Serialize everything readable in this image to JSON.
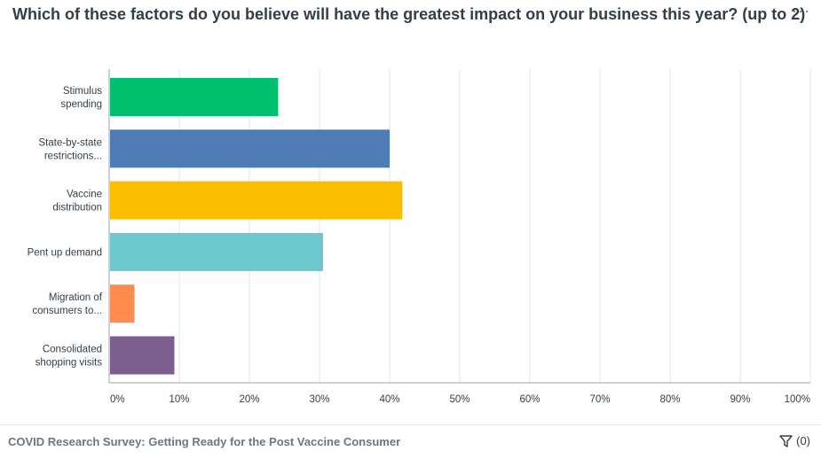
{
  "header": {
    "title": "Which of these factors do you believe will have the greatest impact on your business this year? (up to 2)",
    "menu_label": "···"
  },
  "footer": {
    "survey_name": "COVID Research Survey: Getting Ready for the Post Vaccine Consumer",
    "filter_count": "(0)"
  },
  "chart_data": {
    "type": "bar",
    "orientation": "horizontal",
    "categories": [
      [
        "Stimulus",
        "spending"
      ],
      [
        "State-by-state",
        "restrictions..."
      ],
      [
        "Vaccine",
        "distribution"
      ],
      [
        "Pent up demand"
      ],
      [
        "Migration of",
        "consumers to..."
      ],
      [
        "Consolidated",
        "shopping visits"
      ]
    ],
    "values": [
      24.1,
      40.0,
      41.8,
      30.5,
      3.6,
      9.3
    ],
    "colors": [
      "#00bf6f",
      "#507cb6",
      "#f9be00",
      "#6bc8cd",
      "#ff8b4f",
      "#7d5e90"
    ],
    "xlim": [
      0,
      100
    ],
    "xticks": [
      0,
      10,
      20,
      30,
      40,
      50,
      60,
      70,
      80,
      90,
      100
    ],
    "tick_suffix": "%",
    "grid": true
  }
}
